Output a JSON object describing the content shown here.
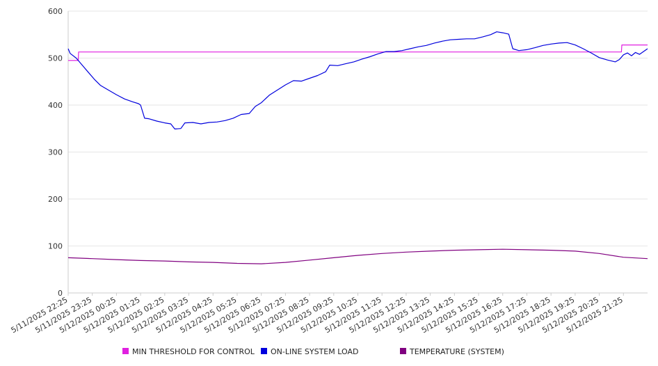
{
  "chart_data": {
    "type": "line",
    "title": "",
    "xlabel": "",
    "ylabel": "",
    "ylim": [
      0,
      600
    ],
    "yticks": [
      0,
      100,
      200,
      300,
      400,
      500,
      600
    ],
    "grid": "horizontal",
    "legend_position": "bottom",
    "x_range": [
      "5/11/2025 22:25",
      "5/12/2025 22:25"
    ],
    "xtick_labels": [
      "5/11/2025 22:25",
      "5/11/2025 23:25",
      "5/12/2025 00:25",
      "5/12/2025 01:25",
      "5/12/2025 02:25",
      "5/12/2025 03:25",
      "5/12/2025 04:25",
      "5/12/2025 05:25",
      "5/12/2025 06:25",
      "5/12/2025 07:25",
      "5/12/2025 08:25",
      "5/12/2025 09:25",
      "5/12/2025 10:25",
      "5/12/2025 11:25",
      "5/12/2025 12:25",
      "5/12/2025 13:25",
      "5/12/2025 14:25",
      "5/12/2025 15:25",
      "5/12/2025 16:25",
      "5/12/2025 17:25",
      "5/12/2025 18:25",
      "5/12/2025 19:25",
      "5/12/2025 20:25",
      "5/12/2025 21:25"
    ],
    "series": [
      {
        "name": "MIN THRESHOLD FOR CONTROL",
        "color": "#e020e0",
        "points": [
          [
            "5/11/2025 22:25",
            495
          ],
          [
            "5/11/2025 22:50",
            495
          ],
          [
            "5/11/2025 22:51",
            513
          ],
          [
            "5/12/2025 21:20",
            513
          ],
          [
            "5/12/2025 21:21",
            528
          ],
          [
            "5/12/2025 22:25",
            528
          ]
        ]
      },
      {
        "name": "ON-LINE SYSTEM LOAD",
        "color": "#0000dd",
        "points": [
          [
            "5/11/2025 22:25",
            520
          ],
          [
            "5/11/2025 22:30",
            510
          ],
          [
            "5/11/2025 22:45",
            500
          ],
          [
            "5/11/2025 23:00",
            485
          ],
          [
            "5/11/2025 23:15",
            470
          ],
          [
            "5/11/2025 23:30",
            455
          ],
          [
            "5/11/2025 23:45",
            442
          ],
          [
            "5/12/2025 00:05",
            432
          ],
          [
            "5/12/2025 00:25",
            422
          ],
          [
            "5/12/2025 00:45",
            413
          ],
          [
            "5/12/2025 01:05",
            407
          ],
          [
            "5/12/2025 01:20",
            403
          ],
          [
            "5/12/2025 01:25",
            400
          ],
          [
            "5/12/2025 01:35",
            372
          ],
          [
            "5/12/2025 01:45",
            371
          ],
          [
            "5/12/2025 02:05",
            366
          ],
          [
            "5/12/2025 02:25",
            362
          ],
          [
            "5/12/2025 02:40",
            360
          ],
          [
            "5/12/2025 02:50",
            349
          ],
          [
            "5/12/2025 03:05",
            350
          ],
          [
            "5/12/2025 03:15",
            362
          ],
          [
            "5/12/2025 03:35",
            363
          ],
          [
            "5/12/2025 03:55",
            360
          ],
          [
            "5/12/2025 04:15",
            363
          ],
          [
            "5/12/2025 04:35",
            364
          ],
          [
            "5/12/2025 04:55",
            367
          ],
          [
            "5/12/2025 05:15",
            372
          ],
          [
            "5/12/2025 05:35",
            380
          ],
          [
            "5/12/2025 05:55",
            382
          ],
          [
            "5/12/2025 06:10",
            397
          ],
          [
            "5/12/2025 06:25",
            405
          ],
          [
            "5/12/2025 06:45",
            421
          ],
          [
            "5/12/2025 07:05",
            432
          ],
          [
            "5/12/2025 07:25",
            443
          ],
          [
            "5/12/2025 07:45",
            452
          ],
          [
            "5/12/2025 08:05",
            451
          ],
          [
            "5/12/2025 08:25",
            457
          ],
          [
            "5/12/2025 08:45",
            463
          ],
          [
            "5/12/2025 09:05",
            471
          ],
          [
            "5/12/2025 09:15",
            485
          ],
          [
            "5/12/2025 09:35",
            484
          ],
          [
            "5/12/2025 09:55",
            488
          ],
          [
            "5/12/2025 10:15",
            492
          ],
          [
            "5/12/2025 10:35",
            498
          ],
          [
            "5/12/2025 10:55",
            503
          ],
          [
            "5/12/2025 11:15",
            509
          ],
          [
            "5/12/2025 11:35",
            514
          ],
          [
            "5/12/2025 11:55",
            514
          ],
          [
            "5/12/2025 12:15",
            516
          ],
          [
            "5/12/2025 12:35",
            520
          ],
          [
            "5/12/2025 12:55",
            524
          ],
          [
            "5/12/2025 13:15",
            527
          ],
          [
            "5/12/2025 13:35",
            532
          ],
          [
            "5/12/2025 13:55",
            536
          ],
          [
            "5/12/2025 14:15",
            539
          ],
          [
            "5/12/2025 14:35",
            540
          ],
          [
            "5/12/2025 14:55",
            541
          ],
          [
            "5/12/2025 15:15",
            541
          ],
          [
            "5/12/2025 15:35",
            545
          ],
          [
            "5/12/2025 15:55",
            550
          ],
          [
            "5/12/2025 16:10",
            556
          ],
          [
            "5/12/2025 16:25",
            554
          ],
          [
            "5/12/2025 16:40",
            551
          ],
          [
            "5/12/2025 16:50",
            520
          ],
          [
            "5/12/2025 17:05",
            516
          ],
          [
            "5/12/2025 17:25",
            518
          ],
          [
            "5/12/2025 17:45",
            522
          ],
          [
            "5/12/2025 18:05",
            527
          ],
          [
            "5/12/2025 18:25",
            530
          ],
          [
            "5/12/2025 18:45",
            532
          ],
          [
            "5/12/2025 19:05",
            533
          ],
          [
            "5/12/2025 19:25",
            528
          ],
          [
            "5/12/2025 19:45",
            520
          ],
          [
            "5/12/2025 20:05",
            511
          ],
          [
            "5/12/2025 20:25",
            501
          ],
          [
            "5/12/2025 20:45",
            496
          ],
          [
            "5/12/2025 21:05",
            492
          ],
          [
            "5/12/2025 21:15",
            497
          ],
          [
            "5/12/2025 21:25",
            507
          ],
          [
            "5/12/2025 21:35",
            511
          ],
          [
            "5/12/2025 21:45",
            505
          ],
          [
            "5/12/2025 21:55",
            512
          ],
          [
            "5/12/2025 22:05",
            508
          ],
          [
            "5/12/2025 22:25",
            520
          ]
        ]
      },
      {
        "name": "TEMPERATURE (SYSTEM)",
        "color": "#800080",
        "points": [
          [
            "5/11/2025 22:25",
            75
          ],
          [
            "5/11/2025 23:25",
            73
          ],
          [
            "5/12/2025 00:25",
            71
          ],
          [
            "5/12/2025 01:25",
            69
          ],
          [
            "5/12/2025 02:25",
            68
          ],
          [
            "5/12/2025 03:25",
            66
          ],
          [
            "5/12/2025 04:25",
            65
          ],
          [
            "5/12/2025 05:25",
            63
          ],
          [
            "5/12/2025 06:25",
            62
          ],
          [
            "5/12/2025 07:25",
            65
          ],
          [
            "5/12/2025 08:25",
            70
          ],
          [
            "5/12/2025 09:25",
            75
          ],
          [
            "5/12/2025 10:25",
            80
          ],
          [
            "5/12/2025 11:25",
            84
          ],
          [
            "5/12/2025 12:25",
            87
          ],
          [
            "5/12/2025 13:25",
            89
          ],
          [
            "5/12/2025 14:25",
            91
          ],
          [
            "5/12/2025 15:25",
            92
          ],
          [
            "5/12/2025 16:25",
            93
          ],
          [
            "5/12/2025 17:25",
            92
          ],
          [
            "5/12/2025 18:25",
            91
          ],
          [
            "5/12/2025 19:25",
            89
          ],
          [
            "5/12/2025 20:25",
            84
          ],
          [
            "5/12/2025 21:25",
            76
          ],
          [
            "5/12/2025 22:25",
            73
          ]
        ]
      }
    ]
  }
}
